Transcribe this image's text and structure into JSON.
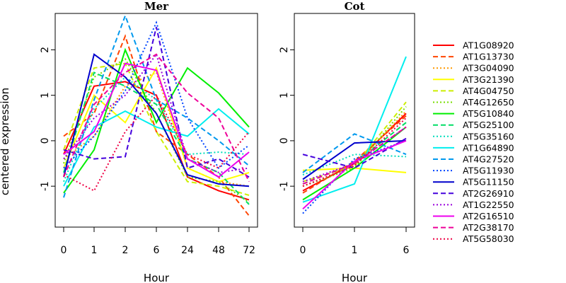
{
  "chart_data": {
    "type": "line",
    "ylabel": "centered expression",
    "xlabel": "Hour",
    "ylim": [
      -1.9,
      2.8
    ],
    "yticks": [
      "-1",
      "0",
      "1",
      "2"
    ],
    "legend_position": "right",
    "panels": [
      {
        "title": "Mer",
        "x": [
          "0",
          "1",
          "2",
          "6",
          "24",
          "48",
          "72"
        ]
      },
      {
        "title": "Cot",
        "x": [
          "0",
          "1",
          "6"
        ]
      }
    ],
    "series": [
      {
        "name": "AT1G08920",
        "color": "#ff0000",
        "dash": "solid",
        "mer": [
          -0.3,
          1.2,
          1.3,
          1.0,
          -0.8,
          -1.1,
          -1.3
        ],
        "cot": [
          -1.1,
          -0.5,
          0.6
        ]
      },
      {
        "name": "AT1G13730",
        "color": "#ff4500",
        "dash": "dashed",
        "mer": [
          0.1,
          0.6,
          2.3,
          0.2,
          -0.3,
          -0.8,
          -1.65
        ],
        "cot": [
          -1.15,
          -0.45,
          0.55
        ]
      },
      {
        "name": "AT3G04090",
        "color": "#ff9900",
        "dash": "dotted",
        "mer": [
          -0.4,
          0.1,
          1.2,
          1.5,
          -0.6,
          -0.9,
          -1.0
        ],
        "cot": [
          -1.0,
          -0.55,
          0.65
        ]
      },
      {
        "name": "AT3G21390",
        "color": "#ffff00",
        "dash": "solid",
        "mer": [
          -0.6,
          1.0,
          0.4,
          1.6,
          -0.6,
          -0.9,
          -0.7
        ],
        "cot": [
          -0.65,
          -0.6,
          -0.7
        ]
      },
      {
        "name": "AT4G04750",
        "color": "#ccee00",
        "dash": "dashed",
        "mer": [
          -0.2,
          1.6,
          1.7,
          0.2,
          -0.9,
          -1.0,
          -1.2
        ],
        "cot": [
          -0.9,
          -0.55,
          0.85
        ]
      },
      {
        "name": "AT4G12650",
        "color": "#77dd00",
        "dash": "dotted",
        "mer": [
          -0.5,
          1.4,
          1.8,
          0.6,
          -0.8,
          -0.9,
          -1.35
        ],
        "cot": [
          -1.0,
          -0.6,
          0.75
        ]
      },
      {
        "name": "AT5G10840",
        "color": "#00ee00",
        "dash": "solid",
        "mer": [
          -1.15,
          -0.2,
          2.0,
          0.4,
          1.6,
          1.05,
          0.3
        ],
        "cot": [
          -1.3,
          -0.6,
          0.3
        ]
      },
      {
        "name": "AT5G25100",
        "color": "#00dd66",
        "dash": "dashed",
        "mer": [
          -0.7,
          1.5,
          1.2,
          0.8,
          -0.4,
          -0.7,
          -1.4
        ],
        "cot": [
          -0.95,
          -0.5,
          0.4
        ]
      },
      {
        "name": "AT5G35160",
        "color": "#00ddbb",
        "dash": "dotted",
        "mer": [
          -0.9,
          0.7,
          1.4,
          0.9,
          -0.3,
          -0.25,
          -0.3
        ],
        "cot": [
          -0.75,
          -0.3,
          -0.35
        ]
      },
      {
        "name": "AT1G64890",
        "color": "#00eeee",
        "dash": "solid",
        "mer": [
          -1.0,
          0.3,
          0.65,
          0.3,
          0.1,
          0.7,
          0.15
        ],
        "cot": [
          -1.35,
          -0.95,
          1.85
        ]
      },
      {
        "name": "AT4G27520",
        "color": "#0099ee",
        "dash": "dashed",
        "mer": [
          -1.25,
          0.9,
          2.75,
          0.9,
          0.5,
          0.0,
          -0.55
        ],
        "cot": [
          -0.7,
          0.15,
          -0.3
        ]
      },
      {
        "name": "AT5G11930",
        "color": "#0044ff",
        "dash": "dotted",
        "mer": [
          -0.6,
          0.1,
          1.1,
          2.6,
          0.5,
          -0.6,
          -0.1
        ],
        "cot": [
          -1.6,
          -0.4,
          0.0
        ]
      },
      {
        "name": "AT5G11150",
        "color": "#0000cc",
        "dash": "solid",
        "mer": [
          -0.8,
          1.9,
          1.4,
          0.6,
          -0.75,
          -0.95,
          -1.0
        ],
        "cot": [
          -0.85,
          -0.05,
          0.0
        ]
      },
      {
        "name": "AT2G26910",
        "color": "#4400dd",
        "dash": "dashed",
        "mer": [
          -0.2,
          -0.4,
          -0.35,
          2.5,
          -0.6,
          -0.4,
          -0.8
        ],
        "cot": [
          -0.3,
          -0.6,
          0.05
        ]
      },
      {
        "name": "AT1G22550",
        "color": "#9900dd",
        "dash": "dotted",
        "mer": [
          -0.4,
          0.5,
          1.0,
          1.9,
          -0.4,
          -0.7,
          -0.6
        ],
        "cot": [
          -0.9,
          -0.5,
          0.3
        ]
      },
      {
        "name": "AT2G16510",
        "color": "#ee00ee",
        "dash": "solid",
        "mer": [
          -0.3,
          0.2,
          1.7,
          1.55,
          -0.4,
          -0.8,
          -0.25
        ],
        "cot": [
          -1.5,
          -0.45,
          0.0
        ]
      },
      {
        "name": "AT2G38170",
        "color": "#ee0099",
        "dash": "dashed",
        "mer": [
          -0.8,
          0.8,
          1.5,
          1.9,
          1.05,
          0.5,
          -0.9
        ],
        "cot": [
          -0.95,
          -0.5,
          0.3
        ]
      },
      {
        "name": "AT5G58030",
        "color": "#ee0044",
        "dash": "dotted",
        "mer": [
          -0.75,
          -1.1,
          0.2,
          1.0,
          -0.3,
          -0.6,
          0.2
        ],
        "cot": [
          -1.0,
          -0.55,
          0.5
        ]
      }
    ]
  }
}
